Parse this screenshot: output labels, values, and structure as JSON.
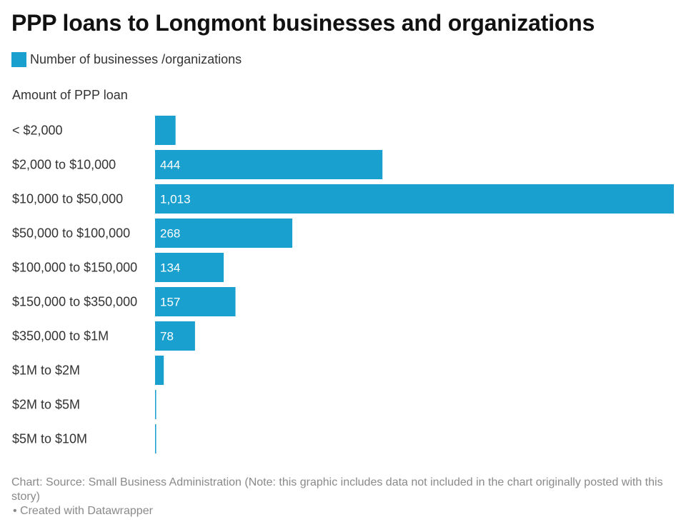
{
  "chart_data": {
    "type": "bar",
    "orientation": "horizontal",
    "title": "PPP loans to Longmont businesses and organizations",
    "category_header": "Amount of PPP loan",
    "categories": [
      "< $2,000",
      "$2,000 to $10,000",
      "$10,000 to $50,000",
      "$50,000 to $100,000",
      "$100,000 to $150,000",
      "$150,000 to $350,000",
      "$350,000 to $1M",
      "$1M to $2M",
      "$2M to $5M",
      "$5M to $10M"
    ],
    "series": [
      {
        "name": "Number of businesses /organizations",
        "color": "#1aa0cf",
        "values": [
          40,
          444,
          1013,
          268,
          134,
          157,
          78,
          17,
          1,
          1
        ],
        "labels": [
          "",
          "444",
          "1,013",
          "268",
          "134",
          "157",
          "78",
          "",
          "",
          ""
        ]
      }
    ],
    "xlim": [
      0,
      1013
    ],
    "grid": false,
    "legend_position": "top-left"
  },
  "footer": {
    "source": "Chart: Source: Small Business Administration (Note: this graphic includes data not included in the chart originally posted with this story)",
    "credit": "• Created with Datawrapper"
  }
}
